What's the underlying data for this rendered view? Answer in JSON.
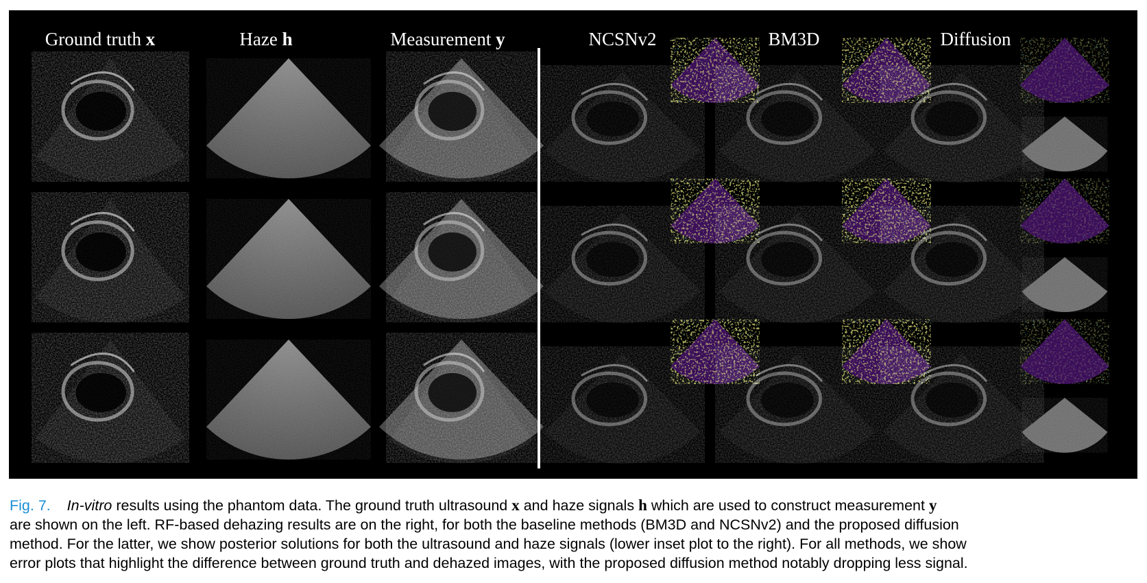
{
  "figure": {
    "column_titles": [
      {
        "text": "Ground truth",
        "symbol": "x"
      },
      {
        "text": "Haze",
        "symbol": "h"
      },
      {
        "text": "Measurement",
        "symbol": "y"
      },
      {
        "text": "NCSNv2",
        "symbol": ""
      },
      {
        "text": "BM3D",
        "symbol": ""
      },
      {
        "text": "Diffusion",
        "symbol": ""
      }
    ],
    "rows": 3,
    "colors": {
      "background": "#000000",
      "error_map_base": "#3b0f5a",
      "error_map_high": "#e8e83a",
      "error_map_mid": "#2a9a8a"
    }
  },
  "caption": {
    "label": "Fig. 7.",
    "italic_lead": "In-vitro",
    "line1_text_a": " results using the phantom data. The ground truth ultrasound ",
    "sym_x": "x",
    "line1_text_b": " and haze signals ",
    "sym_h": "h",
    "line1_text_c": " which are used to construct measurement ",
    "sym_y": "y",
    "line2": "are shown on the left. RF-based dehazing results are on the right, for both the baseline methods (BM3D and NCSNv2) and the proposed diffusion",
    "line3": "method. For the latter, we show posterior solutions for both the ultrasound and haze signals (lower inset plot to the right). For all methods, we show",
    "line4": "error plots that highlight the difference between ground truth and dehazed images, with the proposed diffusion method notably dropping less signal."
  }
}
